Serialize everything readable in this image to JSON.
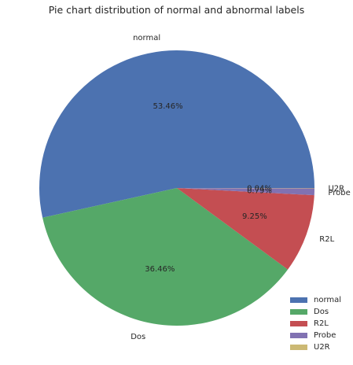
{
  "chart_data": {
    "type": "pie",
    "title": "Pie chart distribution of normal and abnormal labels",
    "categories": [
      "normal",
      "Dos",
      "R2L",
      "Probe",
      "U2R"
    ],
    "values": [
      53.46,
      36.46,
      9.25,
      0.79,
      0.04
    ],
    "value_labels": [
      "53.46%",
      "36.46%",
      "9.25%",
      "0.79%",
      "0.04%"
    ],
    "colors": [
      "#4c72b0",
      "#55a868",
      "#c44e52",
      "#8172b2",
      "#ccb974"
    ],
    "legend": {
      "position": "lower-right",
      "entries": [
        "normal",
        "Dos",
        "R2L",
        "Probe",
        "U2R"
      ]
    }
  }
}
